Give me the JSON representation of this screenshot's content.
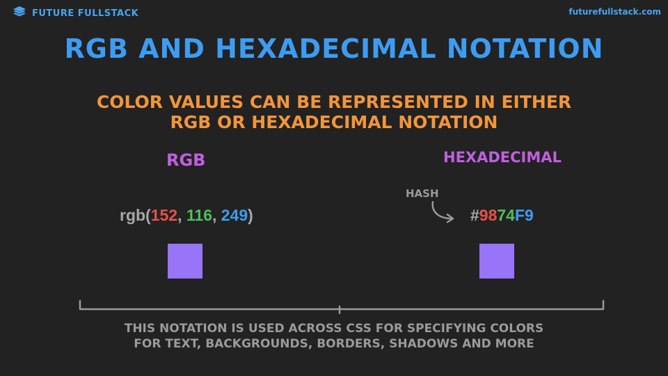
{
  "header": {
    "brand": "FUTURE FULLSTACK",
    "site": "futurefullstack.com",
    "logo_icon": "stacked-layers-icon"
  },
  "slide": {
    "title": "RGB AND HEXADECIMAL NOTATION",
    "subtitle_line1": "COLOR VALUES CAN BE REPRESENTED IN EITHER",
    "subtitle_line2": "RGB OR HEXADECIMAL NOTATION",
    "rgb_label": "RGB",
    "hex_label": "HEXADECIMAL",
    "hash_label": "HASH",
    "rgb": {
      "prefix": "rgb(",
      "r": "152",
      "sep1": ", ",
      "g": "116",
      "sep2": ", ",
      "b": "249",
      "suffix": ")"
    },
    "hex": {
      "hash": "#",
      "r": "98",
      "g": "74",
      "b": "F9"
    },
    "footer_line1": "THIS NOTATION IS USED ACROSS CSS FOR SPECIFYING COLORS",
    "footer_line2": "FOR TEXT, BACKGROUNDS, BORDERS, SHADOWS AND MORE"
  },
  "colors": {
    "background": "#222222",
    "brand_blue": "#4aa3f0",
    "title_blue": "#3d9cf2",
    "subtitle_orange": "#f2953a",
    "label_purple": "#c060e0",
    "muted_gray": "#9a9a9a",
    "red_channel": "#e8504a",
    "green_channel": "#4fbf5a",
    "blue_channel": "#3d9cf2",
    "swatch": "#9874F9"
  }
}
